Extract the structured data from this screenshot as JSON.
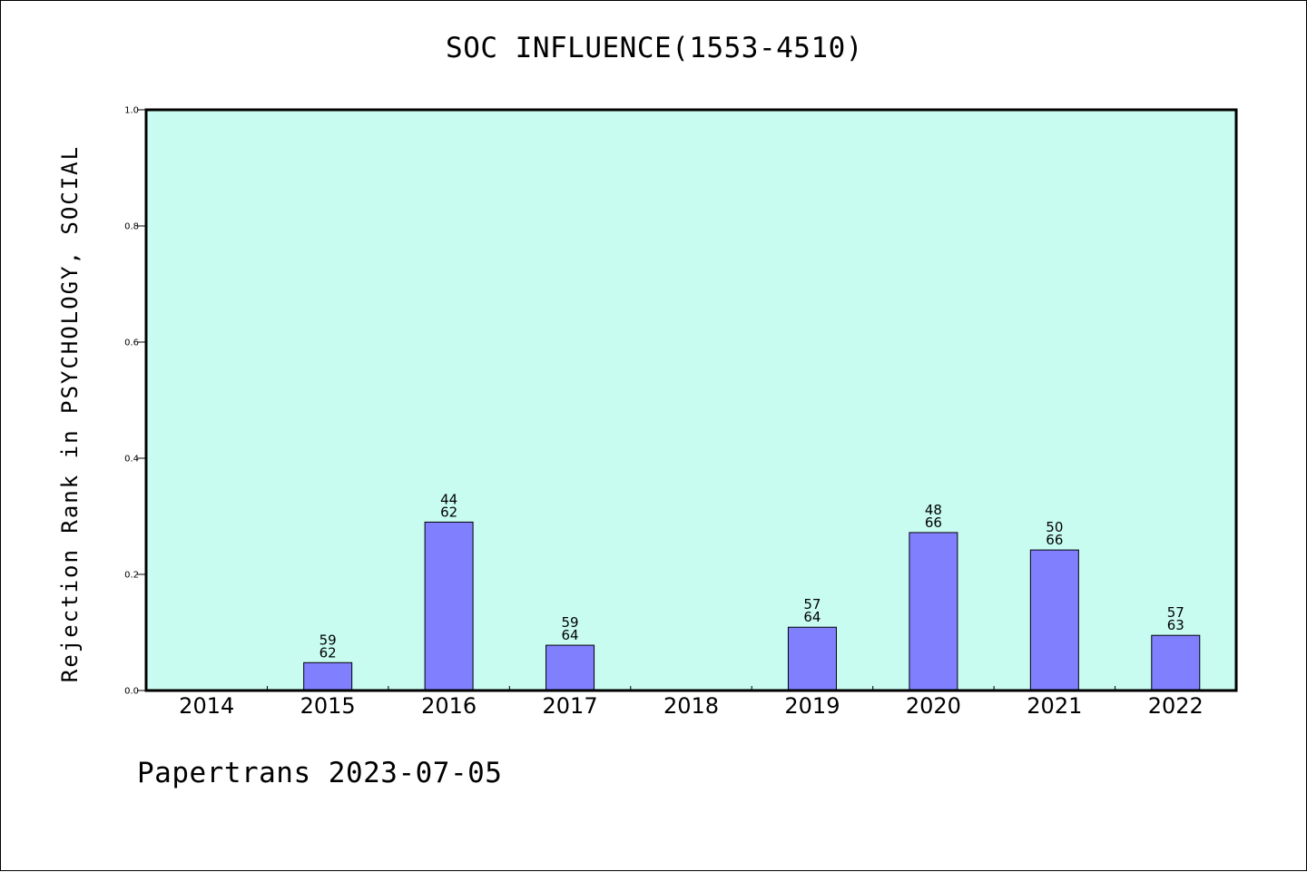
{
  "chart_data": {
    "type": "bar",
    "title": "SOC INFLUENCE(1553-4510)",
    "ylabel": "Rejection Rank in PSYCHOLOGY, SOCIAL",
    "xlabel": "",
    "ylim": [
      0,
      1.0
    ],
    "yticks": [
      "0.0",
      "0.2",
      "0.4",
      "0.6",
      "0.8",
      "1.0"
    ],
    "categories": [
      "2014",
      "2015",
      "2016",
      "2017",
      "2018",
      "2019",
      "2020",
      "2021",
      "2022"
    ],
    "values": [
      0,
      0.048,
      0.29,
      0.078,
      0,
      0.109,
      0.272,
      0.242,
      0.095
    ],
    "bar_labels": [
      null,
      [
        "59",
        "62"
      ],
      [
        "44",
        "62"
      ],
      [
        "59",
        "64"
      ],
      null,
      [
        "57",
        "64"
      ],
      [
        "48",
        "66"
      ],
      [
        "50",
        "66"
      ],
      [
        "57",
        "63"
      ]
    ],
    "grid": false,
    "legend": "none",
    "colors": {
      "bar": "#8080ff",
      "plot_bg": "#c8fcf0",
      "axis": "#000000"
    }
  },
  "footer": "Papertrans 2023-07-05"
}
